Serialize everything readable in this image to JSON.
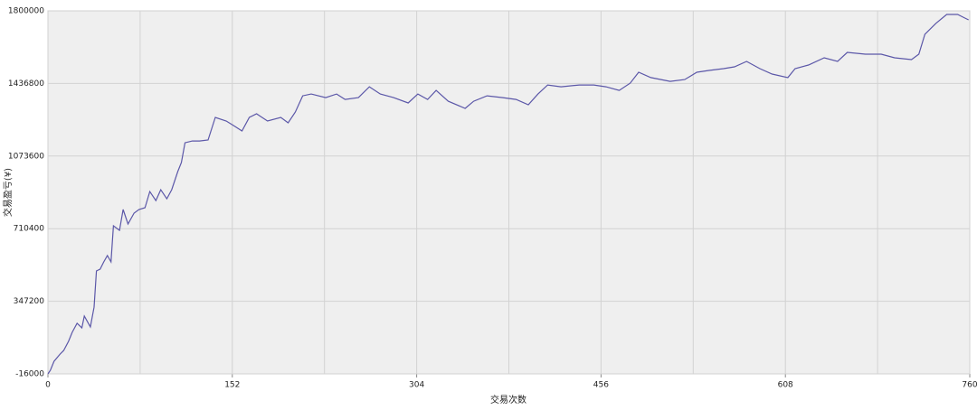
{
  "chart_data": {
    "type": "line",
    "xlabel": "交易次数",
    "ylabel": "交易盈亏(¥)",
    "color": "#5b57a8",
    "grid": true,
    "xlim": [
      0,
      760
    ],
    "xticks": [
      0,
      152,
      304,
      456,
      608,
      760
    ],
    "ylim": [
      -16000,
      1800000
    ],
    "yticks": [
      -16000,
      347200,
      710400,
      1073600,
      1436800,
      1800000
    ],
    "x": [
      0,
      2,
      5,
      10,
      13,
      17,
      20,
      24,
      28,
      30,
      35,
      38,
      40,
      43,
      46,
      49,
      52,
      54,
      59,
      62,
      66,
      71,
      75,
      80,
      84,
      89,
      93,
      98,
      102,
      107,
      110,
      113,
      119,
      125,
      132,
      138,
      147,
      154,
      160,
      166,
      172,
      181,
      192,
      198,
      204,
      210,
      217,
      229,
      238,
      245,
      256,
      265,
      274,
      285,
      297,
      305,
      313,
      320,
      330,
      344,
      351,
      362,
      375,
      386,
      396,
      404,
      412,
      423,
      438,
      450,
      460,
      471,
      480,
      487,
      497,
      513,
      525,
      535,
      545,
      557,
      566,
      576,
      587,
      597,
      610,
      616,
      627,
      640,
      651,
      659,
      674,
      687,
      698,
      712,
      718,
      723,
      732,
      741,
      750,
      756,
      759
    ],
    "values": [
      -16000,
      2000,
      47000,
      83000,
      101000,
      147000,
      192000,
      237000,
      214000,
      273000,
      219000,
      318000,
      499000,
      508000,
      544000,
      576000,
      544000,
      725000,
      702000,
      806000,
      734000,
      788000,
      806000,
      815000,
      896000,
      851000,
      905000,
      860000,
      905000,
      996000,
      1041000,
      1140000,
      1149000,
      1149000,
      1154000,
      1267000,
      1249000,
      1222000,
      1199000,
      1267000,
      1285000,
      1249000,
      1267000,
      1240000,
      1294000,
      1375000,
      1384000,
      1366000,
      1384000,
      1357000,
      1366000,
      1420000,
      1384000,
      1366000,
      1339000,
      1384000,
      1357000,
      1402000,
      1348000,
      1312000,
      1348000,
      1375000,
      1366000,
      1357000,
      1330000,
      1384000,
      1429000,
      1420000,
      1429000,
      1429000,
      1420000,
      1402000,
      1438000,
      1493000,
      1466000,
      1447000,
      1456000,
      1493000,
      1502000,
      1511000,
      1520000,
      1547000,
      1511000,
      1484000,
      1466000,
      1511000,
      1529000,
      1565000,
      1547000,
      1592000,
      1583000,
      1583000,
      1565000,
      1556000,
      1583000,
      1683000,
      1737000,
      1782000,
      1782000,
      1764000,
      1755000
    ]
  }
}
